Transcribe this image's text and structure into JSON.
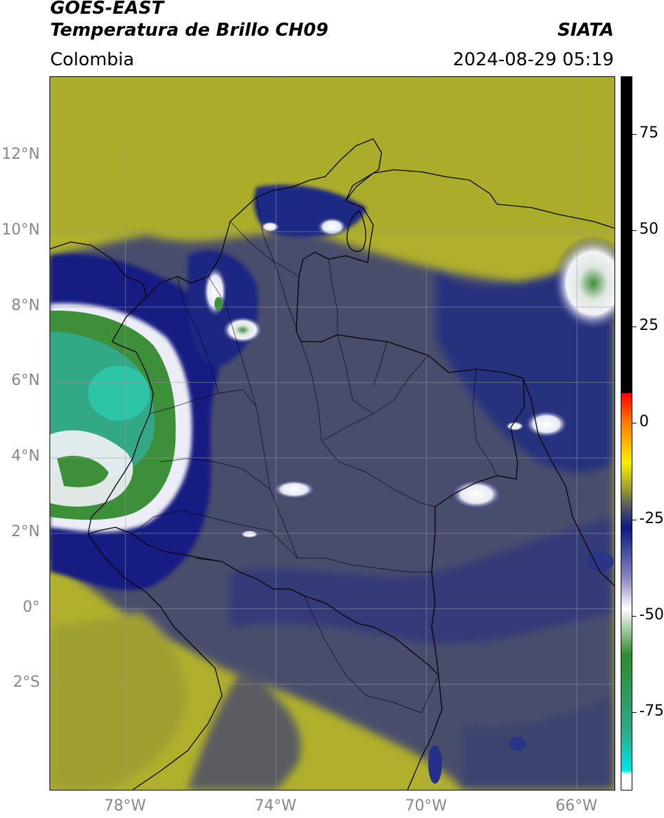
{
  "header": {
    "title_line1": "GOES-EAST",
    "title_line2": "Temperatura de Brillo CH09",
    "brand": "SIATA",
    "region": "Colombia",
    "timestamp": "2024-08-29 05:19"
  },
  "map": {
    "lon_range": [
      -80,
      -65
    ],
    "lat_range": [
      -4.8,
      14.1
    ],
    "lat_ticks": [
      {
        "value": 12,
        "label": "12°N"
      },
      {
        "value": 10,
        "label": "10°N"
      },
      {
        "value": 8,
        "label": "8°N"
      },
      {
        "value": 6,
        "label": "6°N"
      },
      {
        "value": 4,
        "label": "4°N"
      },
      {
        "value": 2,
        "label": "2°N"
      },
      {
        "value": 0,
        "label": "0°"
      },
      {
        "value": -2,
        "label": "2°S"
      }
    ],
    "lon_ticks": [
      {
        "value": -78,
        "label": "78°W"
      },
      {
        "value": -74,
        "label": "74°W"
      },
      {
        "value": -70,
        "label": "70°W"
      },
      {
        "value": -66,
        "label": "66°W"
      }
    ],
    "grid": true,
    "colors": {
      "warm_olive": "#b3b32e",
      "dark_gray_blue": "#4a4d6e",
      "navy": "#1a237e",
      "white_cloud": "#f2f2f5",
      "cold_green": "#3d8f3a",
      "coldest_teal": "#2ec4a6",
      "border": "#000000"
    }
  },
  "colorbar": {
    "range": [
      -95,
      90
    ],
    "ticks": [
      {
        "value": 75,
        "label": "75"
      },
      {
        "value": 50,
        "label": "50"
      },
      {
        "value": 25,
        "label": "25"
      },
      {
        "value": 0,
        "label": "0"
      },
      {
        "value": -25,
        "label": "-25"
      },
      {
        "value": -50,
        "label": "-50"
      },
      {
        "value": -75,
        "label": "-75"
      }
    ],
    "stops": [
      {
        "value": 90,
        "color": "#000000"
      },
      {
        "value": 8,
        "color": "#000000"
      },
      {
        "value": 7.9,
        "color": "#ff0000"
      },
      {
        "value": 0,
        "color": "#ff7f00"
      },
      {
        "value": -10,
        "color": "#ffee00"
      },
      {
        "value": -17,
        "color": "#9a9a30"
      },
      {
        "value": -22,
        "color": "#50506a"
      },
      {
        "value": -27,
        "color": "#0a1a80"
      },
      {
        "value": -40,
        "color": "#8888c0"
      },
      {
        "value": -48,
        "color": "#ffffff"
      },
      {
        "value": -60,
        "color": "#2e8a2e"
      },
      {
        "value": -80,
        "color": "#2eaa88"
      },
      {
        "value": -90,
        "color": "#00e5e5"
      },
      {
        "value": -91,
        "color": "#ffffff"
      },
      {
        "value": -95,
        "color": "#ffffff"
      }
    ]
  }
}
